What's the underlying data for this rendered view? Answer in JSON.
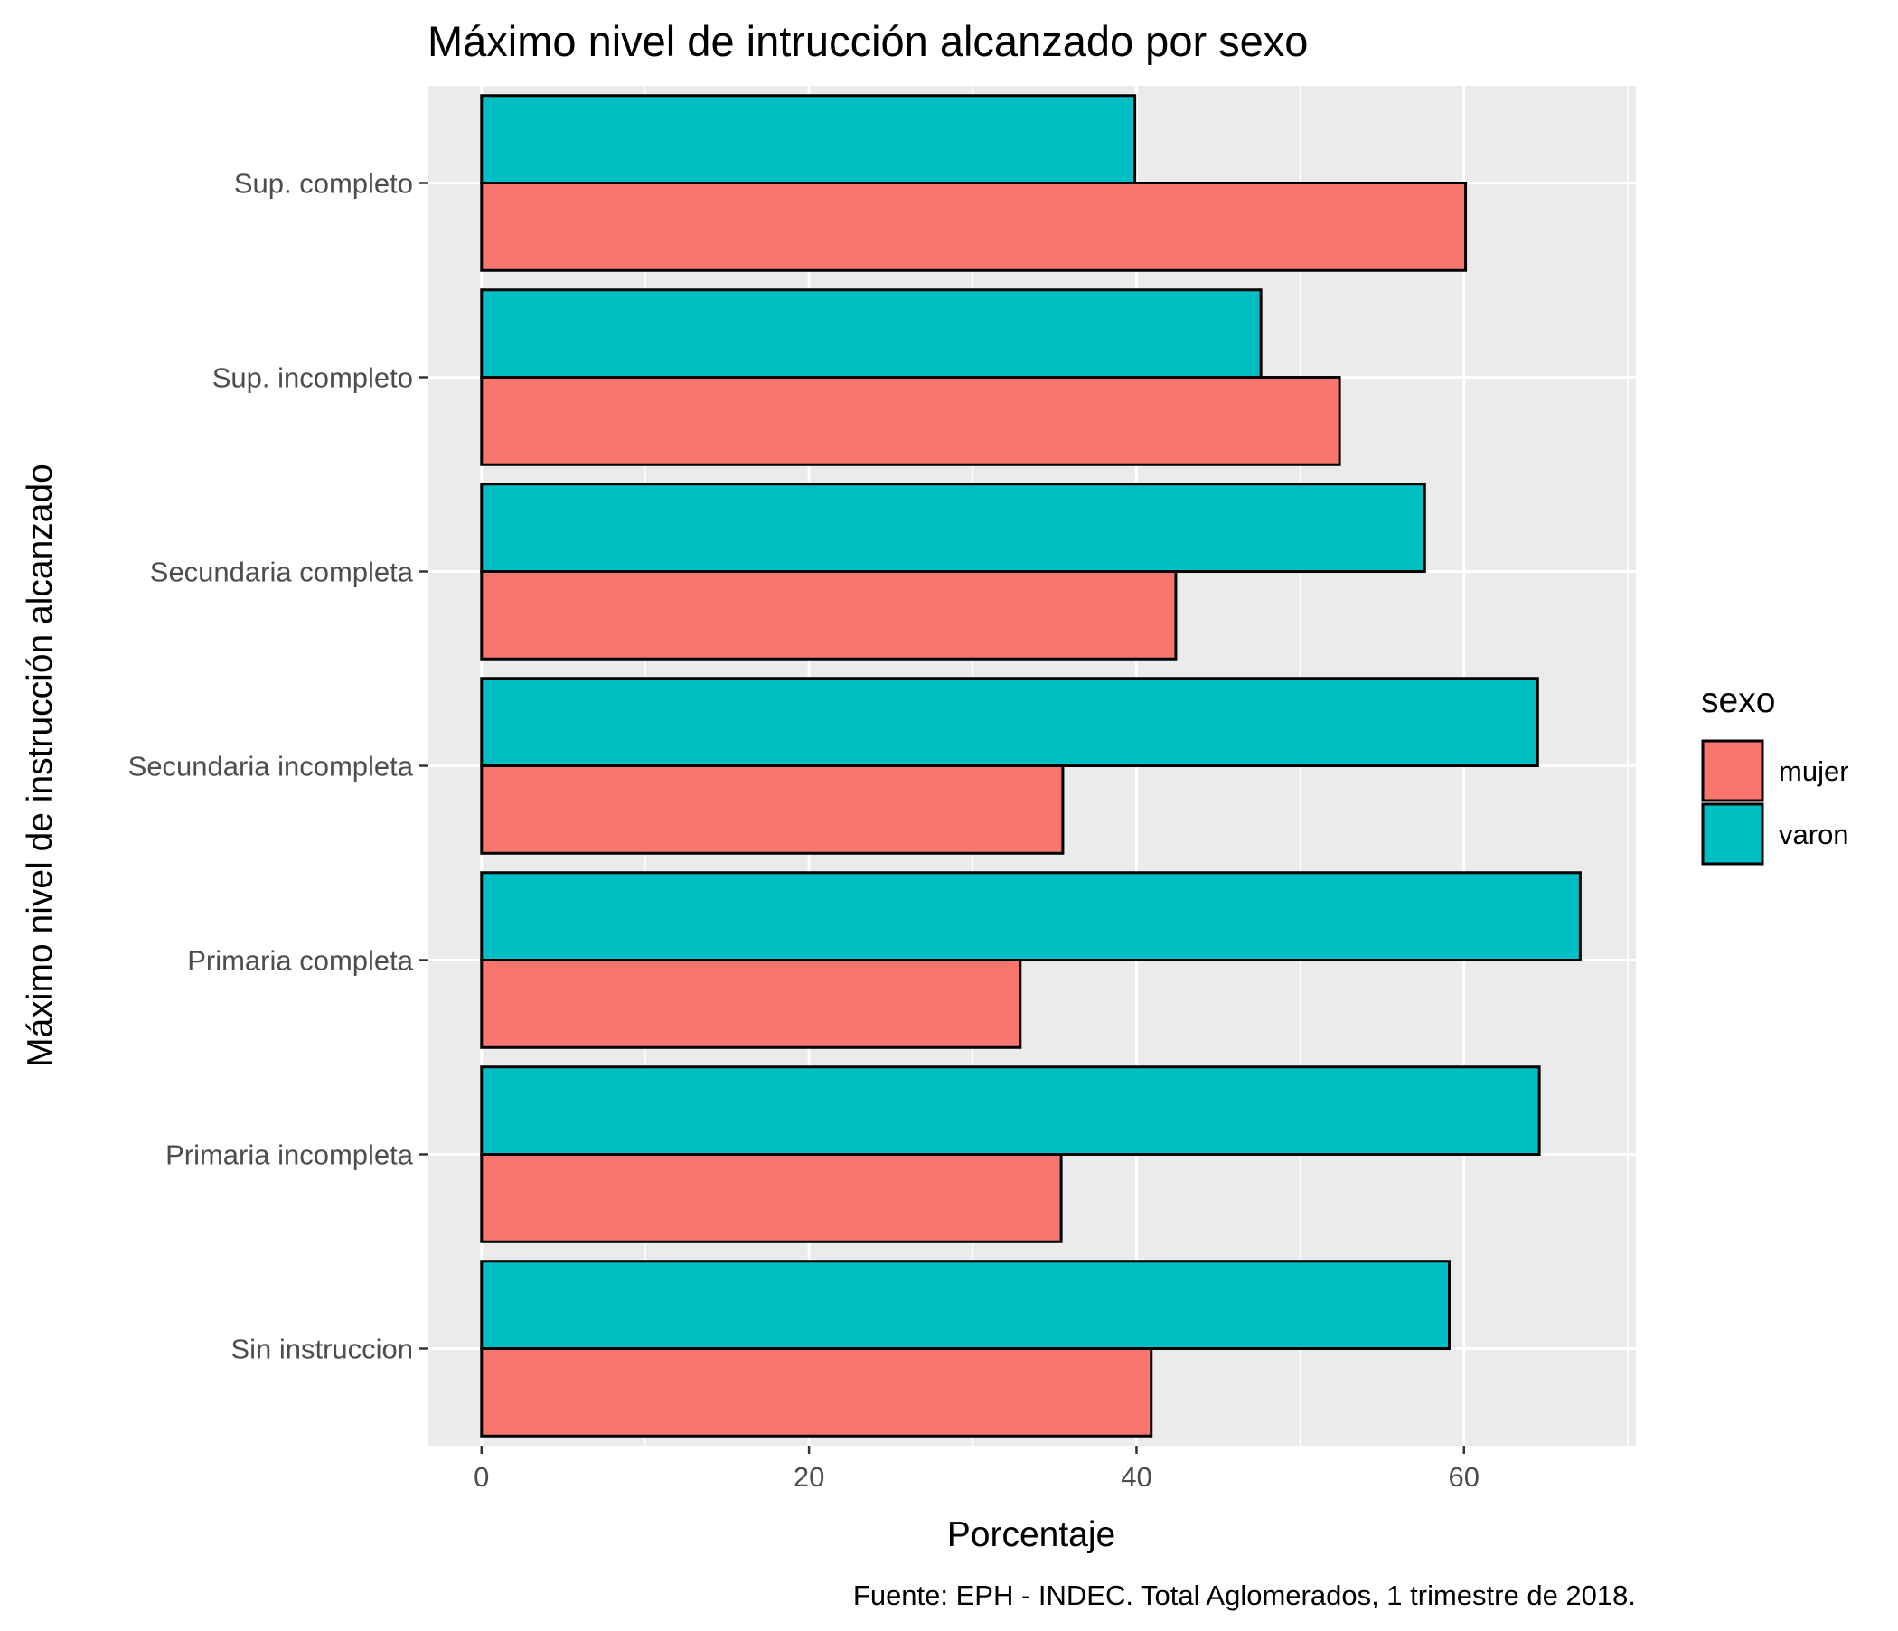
{
  "chart_data": {
    "type": "bar",
    "orientation": "horizontal",
    "title": "Máximo nivel de intrucción alcanzado por sexo",
    "xlabel": "Porcentaje",
    "ylabel": "Máximo nivel de instrucción alcanzado",
    "caption": "Fuente: EPH - INDEC. Total Aglomerados, 1 trimestre de 2018.",
    "categories": [
      "Sup. completo",
      "Sup. incompleto",
      "Secundaria completa",
      "Secundaria incompleta",
      "Primaria completa",
      "Primaria incompleta",
      "Sin instruccion"
    ],
    "series": [
      {
        "name": "mujer",
        "color": "#F8766D",
        "values": [
          60.1,
          52.4,
          42.4,
          35.5,
          32.9,
          35.4,
          40.9
        ]
      },
      {
        "name": "varon",
        "color": "#00BFC4",
        "values": [
          39.9,
          47.6,
          57.6,
          64.5,
          67.1,
          64.6,
          59.1
        ]
      }
    ],
    "xlim": [
      -3.3,
      70.5
    ],
    "x_ticks": [
      0,
      20,
      40,
      60
    ],
    "x_tick_labels": [
      "0",
      "20",
      "40",
      "60"
    ],
    "grid": true,
    "panel_background": "#EBEBEB",
    "legend": {
      "title": "sexo",
      "position": "right"
    }
  }
}
